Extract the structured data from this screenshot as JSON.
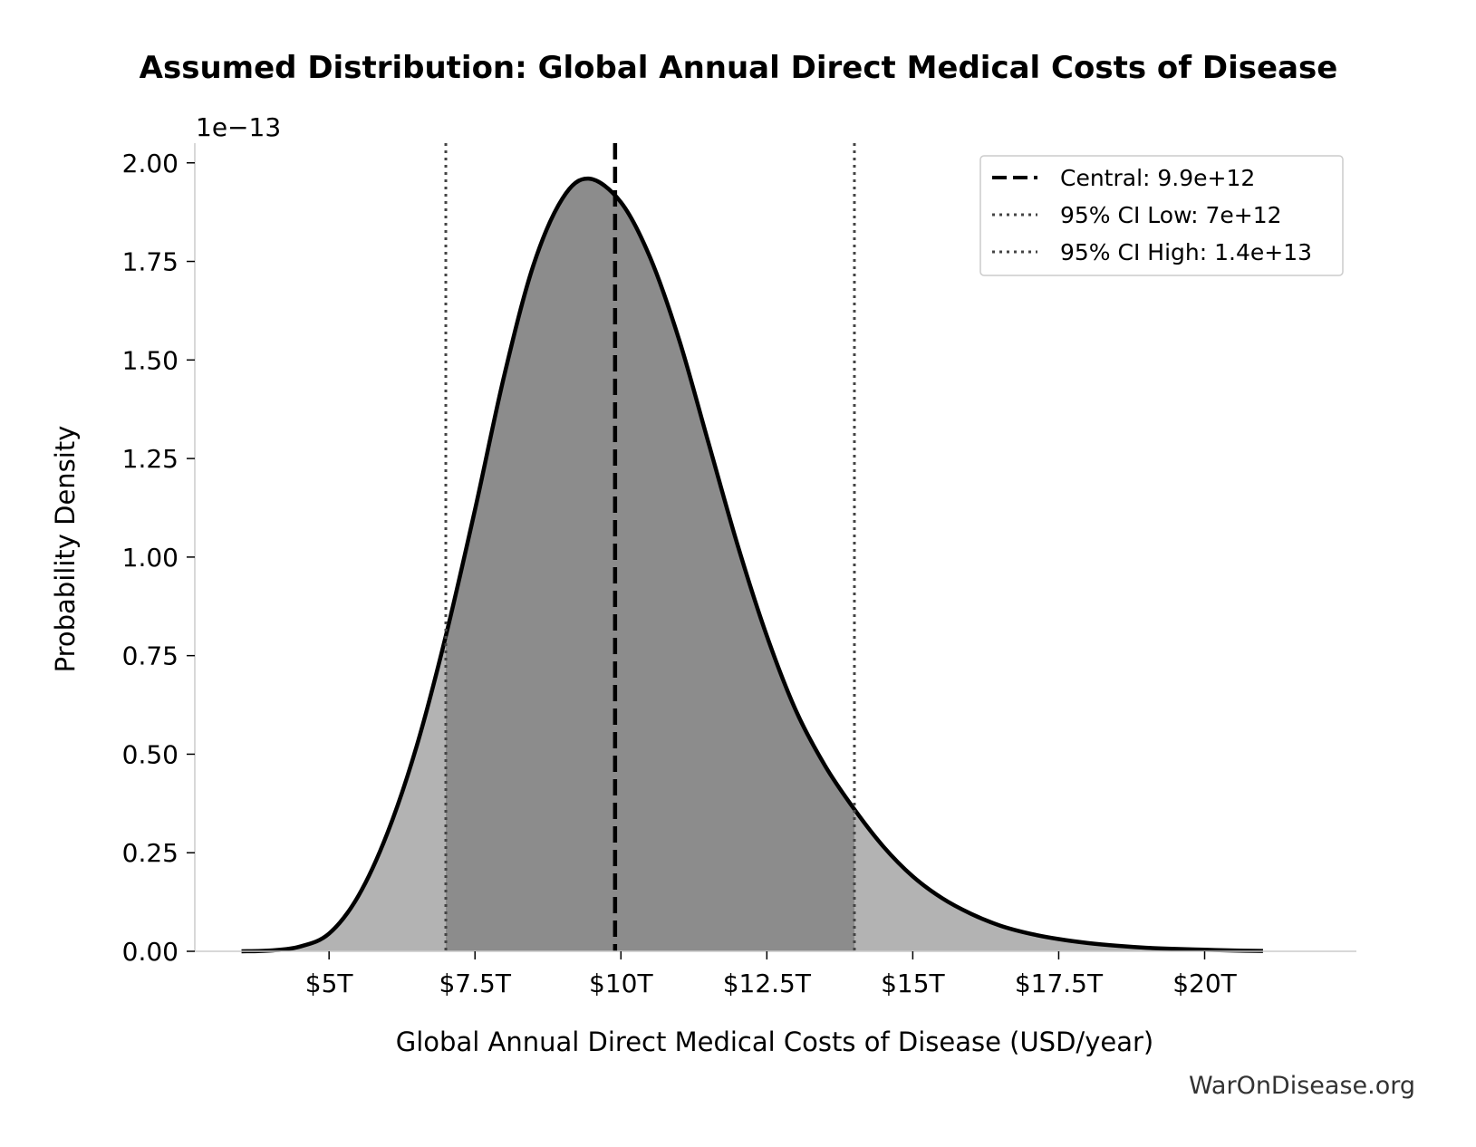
{
  "chart_data": {
    "type": "area",
    "title": "Assumed Distribution: Global Annual Direct Medical Costs of Disease",
    "xlabel": "Global Annual Direct Medical Costs of Disease (USD/year)",
    "ylabel": "Probability Density",
    "y_offset_label": "1e−13",
    "xlim": [
      2700000000000.0,
      22600000000000.0
    ],
    "ylim": [
      0,
      2.05e-13
    ],
    "x_ticks": [
      {
        "value": 5000000000000.0,
        "label": "$5T"
      },
      {
        "value": 7500000000000.0,
        "label": "$7.5T"
      },
      {
        "value": 10000000000000.0,
        "label": "$10T"
      },
      {
        "value": 12500000000000.0,
        "label": "$12.5T"
      },
      {
        "value": 15000000000000.0,
        "label": "$15T"
      },
      {
        "value": 17500000000000.0,
        "label": "$17.5T"
      },
      {
        "value": 20000000000000.0,
        "label": "$20T"
      }
    ],
    "y_ticks": [
      {
        "value": 0,
        "label": "0.00"
      },
      {
        "value": 2.5e-14,
        "label": "0.25"
      },
      {
        "value": 5e-14,
        "label": "0.50"
      },
      {
        "value": 7.5e-14,
        "label": "0.75"
      },
      {
        "value": 1e-13,
        "label": "1.00"
      },
      {
        "value": 1.25e-13,
        "label": "1.25"
      },
      {
        "value": 1.5e-13,
        "label": "1.50"
      },
      {
        "value": 1.75e-13,
        "label": "1.75"
      },
      {
        "value": 2e-13,
        "label": "2.00"
      }
    ],
    "density_curve": {
      "x": [
        3500000000000.0,
        4000000000000.0,
        4500000000000.0,
        5000000000000.0,
        5500000000000.0,
        6000000000000.0,
        6500000000000.0,
        7000000000000.0,
        7500000000000.0,
        8000000000000.0,
        8500000000000.0,
        9000000000000.0,
        9450000000000.0,
        10000000000000.0,
        10500000000000.0,
        11000000000000.0,
        11500000000000.0,
        12000000000000.0,
        12500000000000.0,
        13000000000000.0,
        13500000000000.0,
        14000000000000.0,
        14500000000000.0,
        15000000000000.0,
        15500000000000.0,
        16000000000000.0,
        16500000000000.0,
        17000000000000.0,
        17500000000000.0,
        18000000000000.0,
        18500000000000.0,
        19000000000000.0,
        19500000000000.0,
        20000000000000.0,
        20500000000000.0,
        21000000000000.0
      ],
      "y": [
        0.0,
        2e-16,
        1.2e-15,
        4.5e-15,
        1.4e-14,
        3e-14,
        5.2e-14,
        8e-14,
        1.12e-13,
        1.46e-13,
        1.74e-13,
        1.91e-13,
        1.96e-13,
        1.9e-13,
        1.76e-13,
        1.55e-13,
        1.29e-13,
        1.03e-13,
        8e-14,
        6.1e-14,
        4.7e-14,
        3.6e-14,
        2.65e-14,
        1.9e-14,
        1.35e-14,
        9.5e-15,
        6.5e-15,
        4.5e-15,
        3.1e-15,
        2.1e-15,
        1.4e-15,
        9e-16,
        6e-16,
        4e-16,
        2e-16,
        1e-16
      ]
    },
    "ci_low": 7000000000000.0,
    "ci_high": 14000000000000.0,
    "central": 9900000000000.0,
    "legend": {
      "placement": "top-right",
      "entries": [
        {
          "label": "Central: 9.9e+12",
          "style": "dashed"
        },
        {
          "label": "95% CI Low: 7e+12",
          "style": "dotted"
        },
        {
          "label": "95% CI High: 1.4e+13",
          "style": "dotted"
        }
      ]
    },
    "colors": {
      "tail_fill": "#b3b3b3",
      "ci_fill": "#8c8c8c",
      "curve": "#000000",
      "central_line": "#000000",
      "ci_line": "#444444"
    },
    "grid": false
  },
  "watermark": "WarOnDisease.org"
}
